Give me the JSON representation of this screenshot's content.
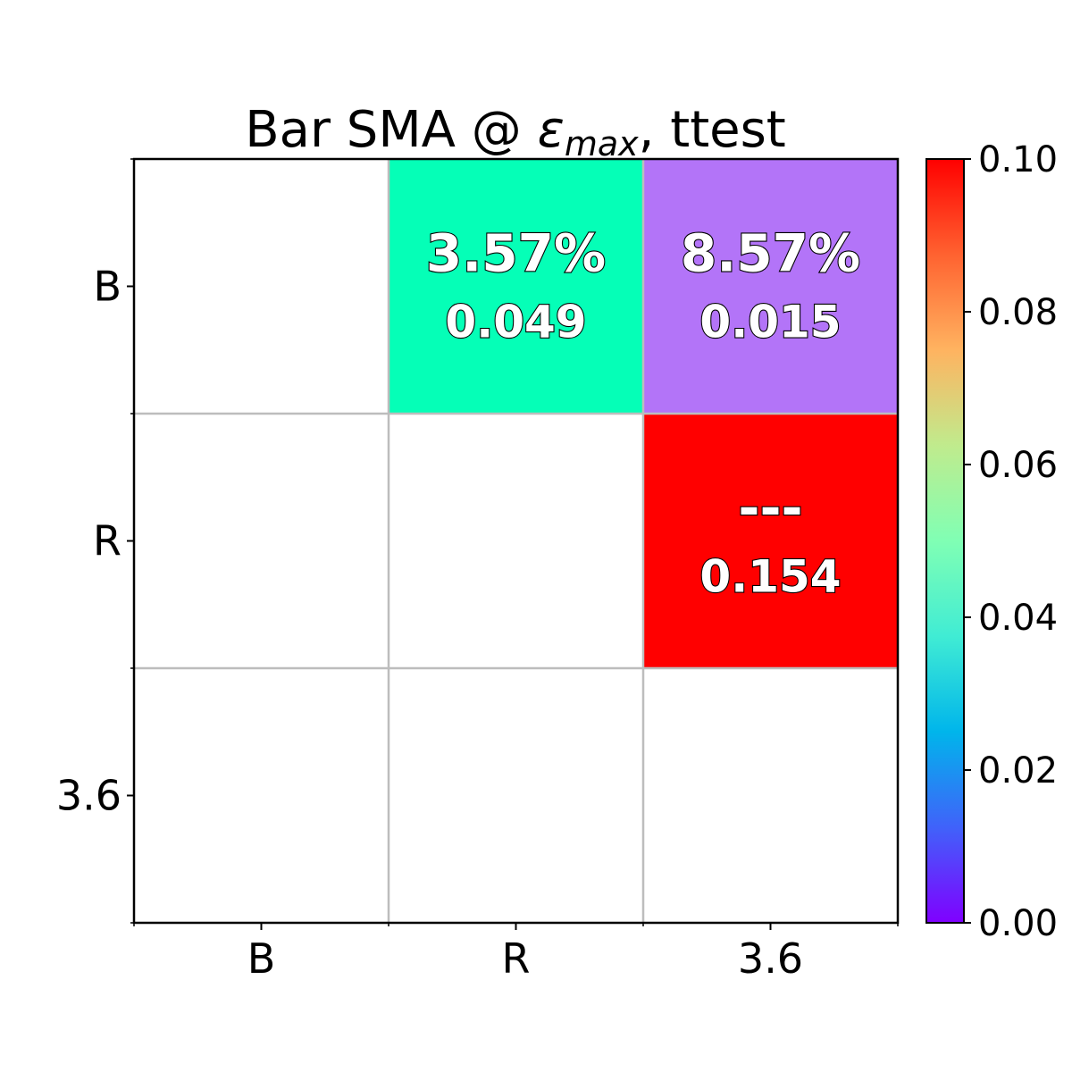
{
  "chart_data": {
    "type": "heatmap",
    "title": {
      "prefix": "Bar SMA @ ",
      "symbol": "ε",
      "subscript": "max",
      "suffix": ", ttest"
    },
    "row_labels": [
      "B",
      "R",
      "3.6"
    ],
    "col_labels": [
      "B",
      "R",
      "3.6"
    ],
    "cells": [
      {
        "row": 0,
        "col": 1,
        "value": 0.049,
        "top_text": "3.57%",
        "bottom_text": "0.049"
      },
      {
        "row": 0,
        "col": 2,
        "value": 0.015,
        "top_text": "8.57%",
        "bottom_text": "0.015"
      },
      {
        "row": 1,
        "col": 2,
        "value": 0.154,
        "top_text": "---",
        "bottom_text": "0.154"
      }
    ],
    "colorbar": {
      "range": [
        0.0,
        0.1
      ],
      "ticks": [
        "0.00",
        "0.02",
        "0.04",
        "0.06",
        "0.08",
        "0.10"
      ],
      "colormap": "rainbow",
      "colors": [
        "#8000ff",
        "#2adddd",
        "#d4dd80",
        "#ff0000"
      ]
    },
    "grid": true
  }
}
